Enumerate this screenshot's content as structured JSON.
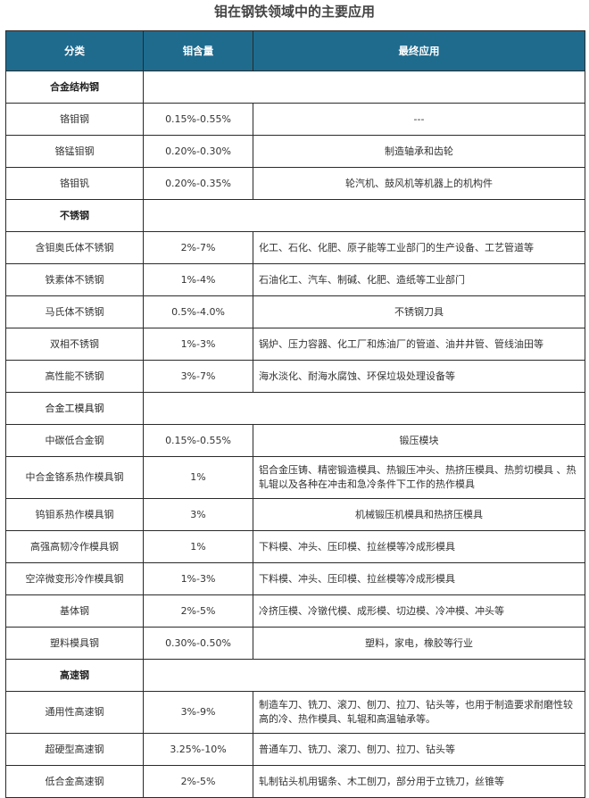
{
  "title": "钼在钢铁领域中的主要应用",
  "header_color": "#1f6b8e",
  "columns": [
    "分类",
    "钼含量",
    "最终应用"
  ],
  "rows": [
    {
      "type": "section",
      "name": "合金结构钢",
      "bold": true
    },
    {
      "name": "铬钼钢",
      "mo": "0.15%-0.55%",
      "app": "---",
      "align": "center"
    },
    {
      "name": "铬锰钼钢",
      "mo": "0.20%-0.30%",
      "app": "制造轴承和齿轮",
      "align": "center"
    },
    {
      "name": "铬钼钒",
      "mo": "0.20%-0.35%",
      "app": "轮汽机、鼓风机等机器上的机构件",
      "align": "center"
    },
    {
      "type": "section",
      "name": "不锈钢",
      "bold": true
    },
    {
      "name": "含钼奥氏体不锈钢",
      "mo": "2%-7%",
      "app": "化工、石化、化肥、原子能等工业部门的生产设备、工艺管道等",
      "align": "left"
    },
    {
      "name": "铁素体不锈钢",
      "mo": "1%-4%",
      "app": "石油化工、汽车、制碱、化肥、造纸等工业部门",
      "align": "left"
    },
    {
      "name": "马氏体不锈钢",
      "mo": "0.5%-4.0%",
      "app": "不锈钢刀具",
      "align": "center"
    },
    {
      "name": "双相不锈钢",
      "mo": "1%-3%",
      "app": "锅炉、压力容器、化工厂和炼油厂的管道、油井井管、管线油田等",
      "align": "left"
    },
    {
      "name": "高性能不锈钢",
      "mo": "3%-7%",
      "app": "海水淡化、耐海水腐蚀、环保垃圾处理设备等",
      "align": "left"
    },
    {
      "type": "section",
      "name": "合金工模具钢",
      "bold": false
    },
    {
      "name": "中碳低合金钢",
      "mo": "0.15%-0.55%",
      "app": "锻压模块",
      "align": "center"
    },
    {
      "name": "中合金铬系热作模具钢",
      "mo": "1%",
      "app": "铝合金压铸、精密锻造模具、热锻压冲头、热挤压模具、热剪切模具 、热轧辊以及各种在冲击和急冷条件下工作的热作模具",
      "align": "left",
      "two": true
    },
    {
      "name": "钨钼系热作模具钢",
      "mo": "3%",
      "app": "机械锻压机模具和热挤压模具",
      "align": "center"
    },
    {
      "name": "高强高韧冷作模具钢",
      "mo": "1%",
      "app": "下料模、冲头、压印模、拉丝模等冷成形模具",
      "align": "left"
    },
    {
      "name": "空淬微变形冷作模具钢",
      "mo": "1%-3%",
      "app": "下料模、冲头、压印模、拉丝模等冷成形模具",
      "align": "left"
    },
    {
      "name": "基体钢",
      "mo": "2%-5%",
      "app": "冷挤压模、冷镦代模、成形模、切边模、冷冲模、冲头等",
      "align": "left"
    },
    {
      "name": "塑料模具钢",
      "mo": "0.30%-0.50%",
      "app": "塑料，家电，橡胶等行业",
      "align": "center"
    },
    {
      "type": "section",
      "name": "高速钢",
      "bold": true
    },
    {
      "name": "通用性高速钢",
      "mo": "3%-9%",
      "app": "制造车刀、铣刀、滚刀、刨刀、拉刀、钻头等，也用于制造要求耐磨性较高的冷、热作模具、轧辊和高温轴承等。",
      "align": "left",
      "two": true
    },
    {
      "name": "超硬型高速钢",
      "mo": "3.25%-10%",
      "app": "普通车刀、铣刀、滚刀、刨刀、拉刀、钻头等",
      "align": "left"
    },
    {
      "name": "低合金高速钢",
      "mo": "2%-5%",
      "app": "轧制钻头机用锯条、木工刨刀，部分用于立铣刀，丝锥等",
      "align": "left"
    }
  ]
}
